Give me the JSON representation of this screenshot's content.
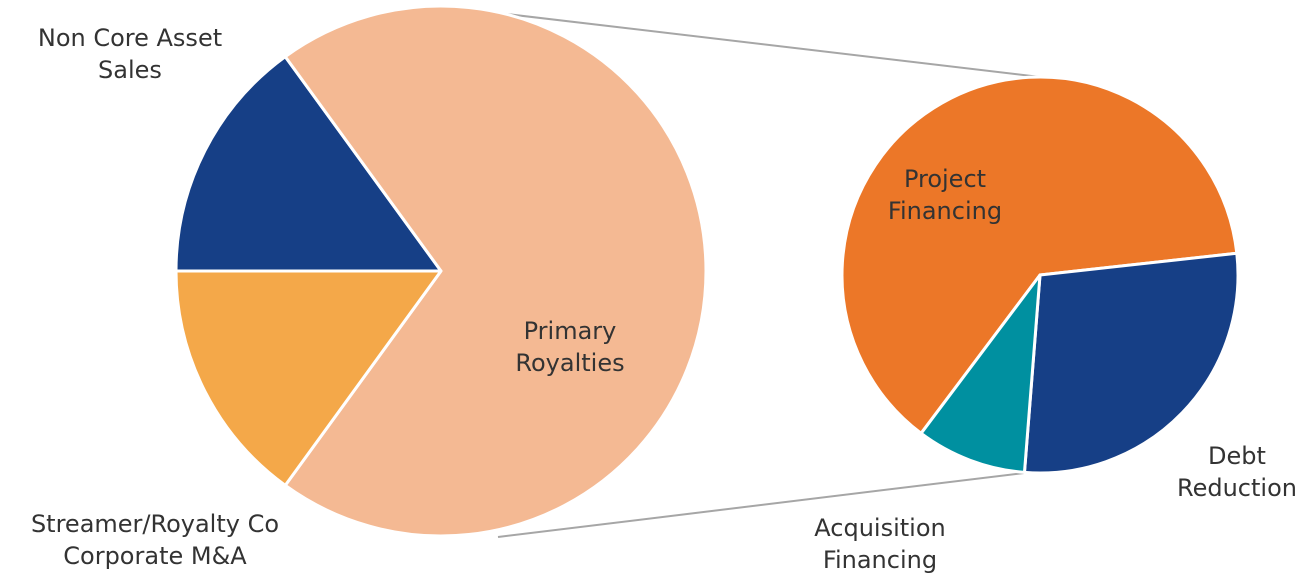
{
  "chart_data": [
    {
      "type": "pie",
      "categories": [
        "Non Core Asset Sales",
        "Primary Royalties",
        "Streamer/Royalty Co Corporate M&A"
      ],
      "values": [
        15,
        70,
        15
      ],
      "colors": [
        "#163f86",
        "#f4b993",
        "#f4a849"
      ]
    },
    {
      "type": "pie",
      "categories": [
        "Project Financing",
        "Debt Reduction",
        "Acquisition Financing"
      ],
      "values": [
        63,
        28,
        9
      ],
      "colors": [
        "#ec7728",
        "#163f86",
        "#0090a0"
      ]
    }
  ]
}
